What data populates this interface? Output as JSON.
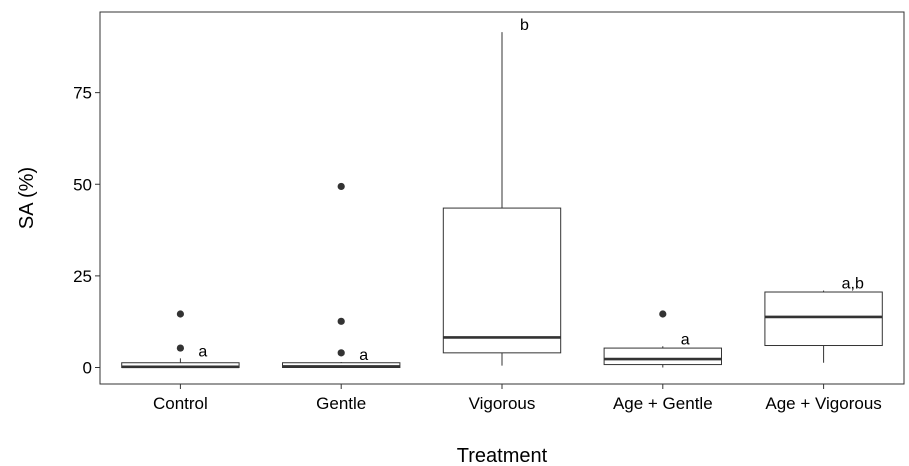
{
  "chart_data": {
    "type": "boxplot",
    "title": "",
    "xlabel": "Treatment",
    "ylabel": "SA (%)",
    "ylim": [
      -4.5,
      97
    ],
    "yticks": [
      0,
      25,
      50,
      75
    ],
    "grid": false,
    "categories": [
      "Control",
      "Gentle",
      "Vigorous",
      "Age + Gentle",
      "Age + Vigorous"
    ],
    "boxes": [
      {
        "category": "Control",
        "min": 0,
        "q1": 0,
        "median": 0.2,
        "q3": 1.3,
        "max": 2.5,
        "outliers": [
          5.3,
          14.6
        ],
        "label": "a"
      },
      {
        "category": "Gentle",
        "min": 0,
        "q1": 0,
        "median": 0.3,
        "q3": 1.3,
        "max": 1.5,
        "outliers": [
          4.0,
          12.6,
          49.4
        ],
        "label": "a"
      },
      {
        "category": "Vigorous",
        "min": 0.5,
        "q1": 4.0,
        "median": 8.2,
        "q3": 43.5,
        "max": 91.5,
        "outliers": [],
        "label": "b"
      },
      {
        "category": "Age + Gentle",
        "min": 0,
        "q1": 0.8,
        "median": 2.3,
        "q3": 5.3,
        "max": 5.8,
        "outliers": [
          14.6
        ],
        "label": "a"
      },
      {
        "category": "Age + Vigorous",
        "min": 1.3,
        "q1": 6.0,
        "median": 13.8,
        "q3": 20.6,
        "max": 21.0,
        "outliers": [],
        "label": "a,b"
      }
    ],
    "box_fill": "#ffffff",
    "line_color": "#333333",
    "point_color": "#333333"
  }
}
